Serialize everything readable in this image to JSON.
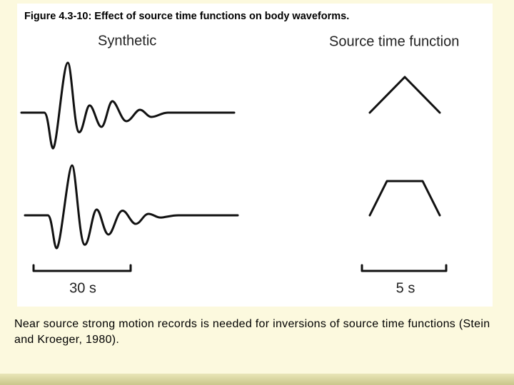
{
  "figure": {
    "title": "Figure 4.3-10: Effect of source time functions on body waveforms.",
    "left_label": "Synthetic",
    "right_label": "Source time function",
    "left_scale": "30 s",
    "right_scale": "5 s"
  },
  "caption": {
    "text": "Near source strong motion records is needed for inversions of source time functions (Stein and Kroeger, 1980)."
  }
}
